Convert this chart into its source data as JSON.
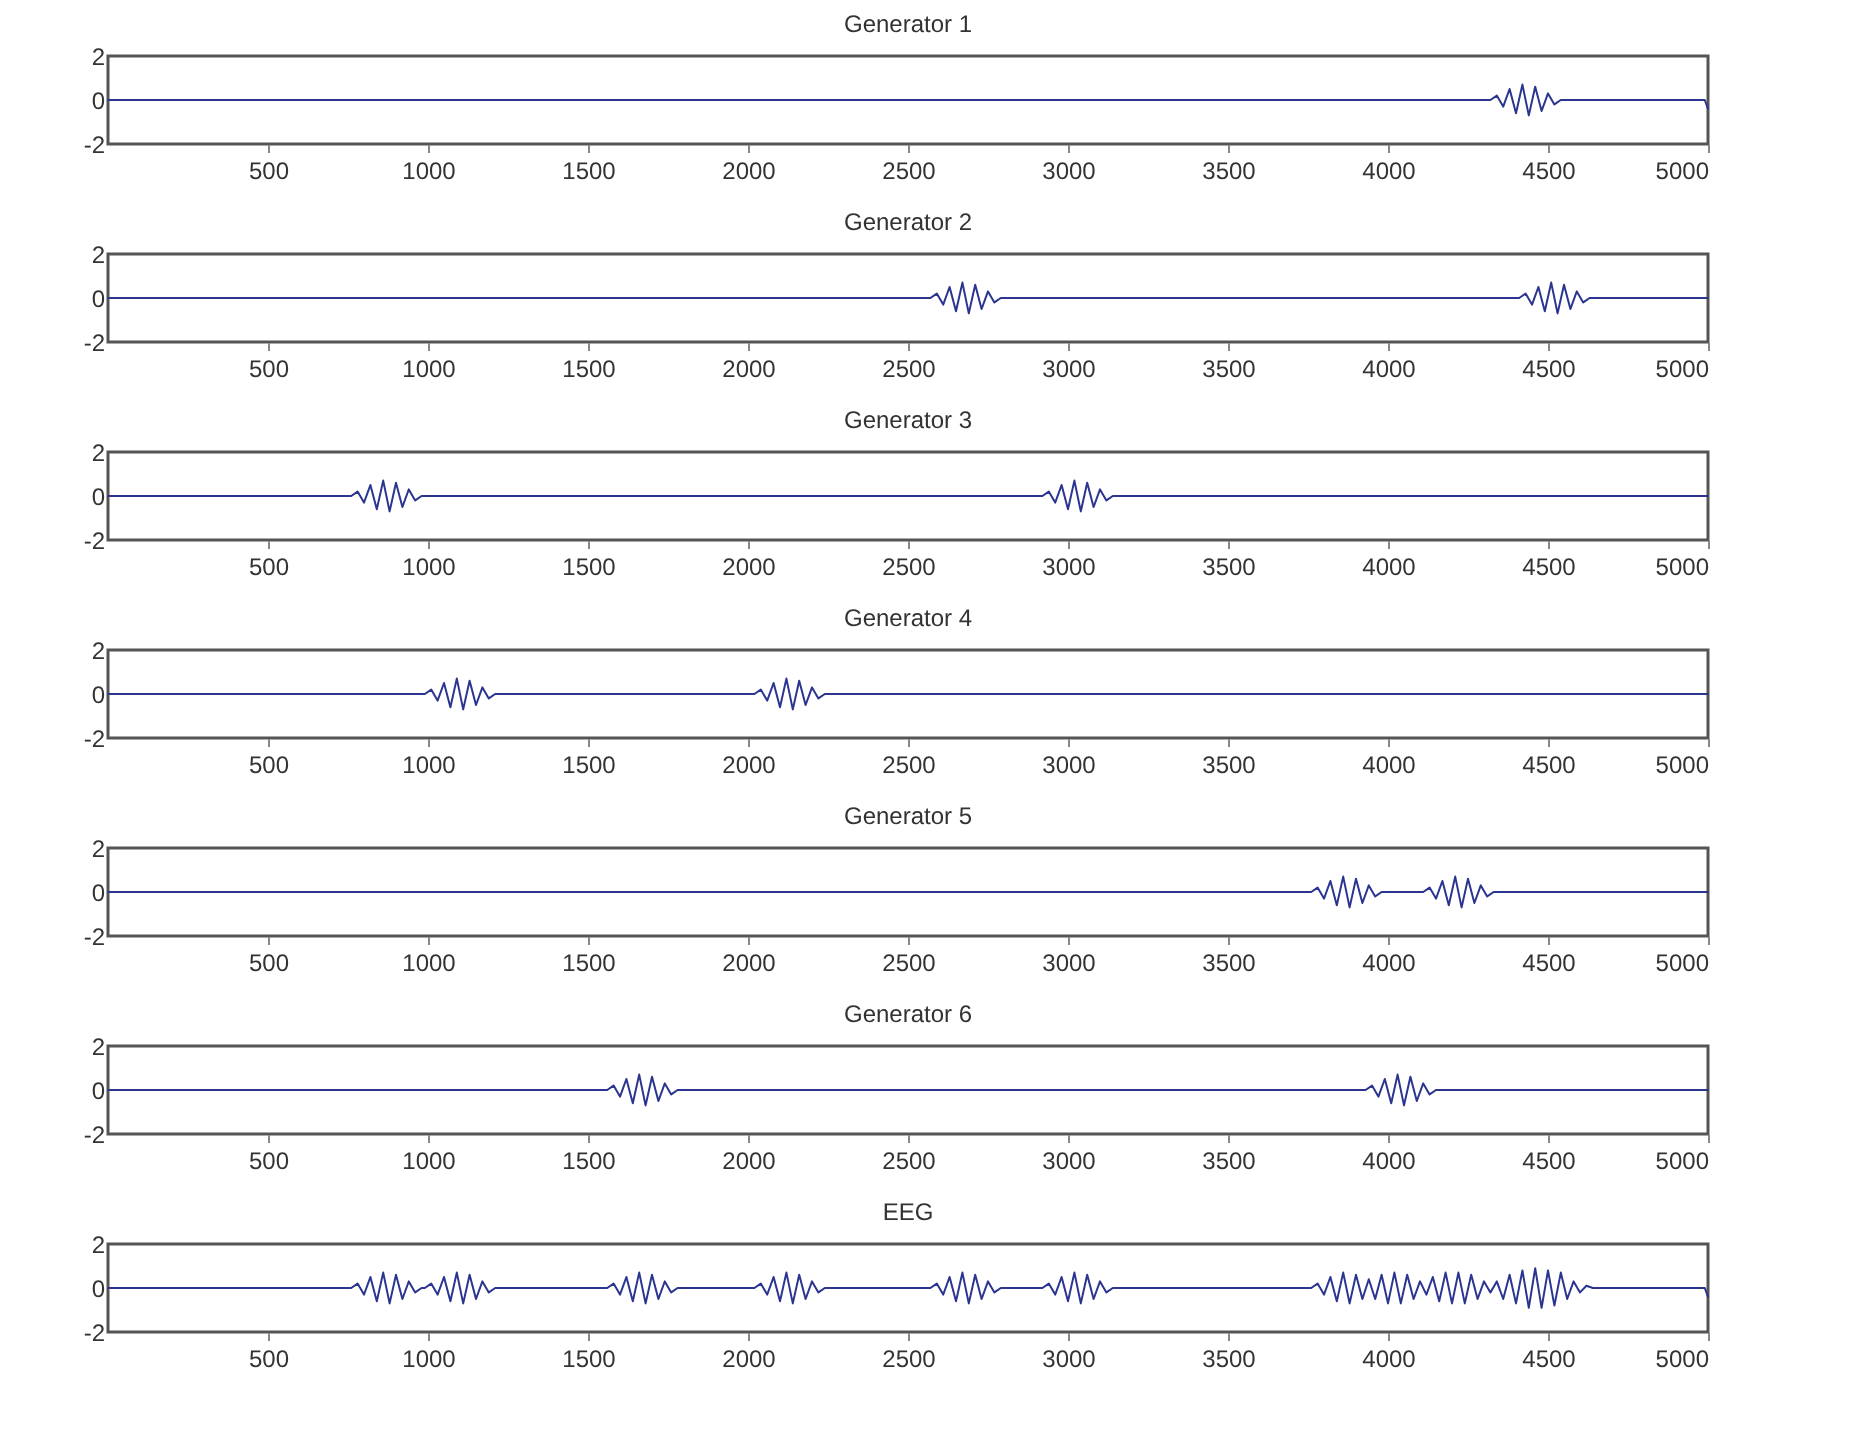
{
  "chart_data": [
    {
      "type": "line",
      "title": "Generator 1",
      "xlim": [
        0,
        5000
      ],
      "xticks": [
        500,
        1000,
        1500,
        2000,
        2500,
        3000,
        3500,
        4000,
        4500,
        5000
      ],
      "ylim": [
        -2,
        2
      ],
      "yticks": [
        -2,
        0,
        2
      ],
      "grid": false,
      "series": [
        {
          "color": "#2b3590",
          "x": [
            1,
            4320,
            4340,
            4360,
            4380,
            4400,
            4420,
            4440,
            4460,
            4480,
            4500,
            4520,
            4540,
            4990,
            5000
          ],
          "values": [
            0,
            0,
            0.2,
            -0.3,
            0.5,
            -0.6,
            0.7,
            -0.7,
            0.6,
            -0.5,
            0.3,
            -0.2,
            0,
            0,
            -0.4
          ]
        }
      ]
    },
    {
      "type": "line",
      "title": "Generator 2",
      "xlim": [
        0,
        5000
      ],
      "xticks": [
        500,
        1000,
        1500,
        2000,
        2500,
        3000,
        3500,
        4000,
        4500,
        5000
      ],
      "ylim": [
        -2,
        2
      ],
      "yticks": [
        -2,
        0,
        2
      ],
      "grid": false,
      "series": [
        {
          "color": "#2b3590",
          "x": [
            1,
            2570,
            2590,
            2610,
            2630,
            2650,
            2670,
            2690,
            2710,
            2730,
            2750,
            2770,
            2790,
            4410,
            4430,
            4450,
            4470,
            4490,
            4510,
            4530,
            4550,
            4570,
            4590,
            4610,
            4630,
            5000
          ],
          "values": [
            0,
            0,
            0.2,
            -0.3,
            0.5,
            -0.6,
            0.7,
            -0.7,
            0.6,
            -0.5,
            0.3,
            -0.2,
            0,
            0,
            0.2,
            -0.3,
            0.5,
            -0.6,
            0.7,
            -0.7,
            0.6,
            -0.5,
            0.3,
            -0.2,
            0,
            0
          ]
        }
      ]
    },
    {
      "type": "line",
      "title": "Generator 3",
      "xlim": [
        0,
        5000
      ],
      "xticks": [
        500,
        1000,
        1500,
        2000,
        2500,
        3000,
        3500,
        4000,
        4500,
        5000
      ],
      "ylim": [
        -2,
        2
      ],
      "yticks": [
        -2,
        0,
        2
      ],
      "grid": false,
      "series": [
        {
          "color": "#2b3590",
          "x": [
            1,
            760,
            780,
            800,
            820,
            840,
            860,
            880,
            900,
            920,
            940,
            960,
            980,
            2920,
            2940,
            2960,
            2980,
            3000,
            3020,
            3040,
            3060,
            3080,
            3100,
            3120,
            3140,
            5000
          ],
          "values": [
            0,
            0,
            0.2,
            -0.3,
            0.5,
            -0.6,
            0.7,
            -0.7,
            0.6,
            -0.5,
            0.3,
            -0.2,
            0,
            0,
            0.2,
            -0.3,
            0.5,
            -0.6,
            0.7,
            -0.7,
            0.6,
            -0.5,
            0.3,
            -0.2,
            0,
            0
          ]
        }
      ]
    },
    {
      "type": "line",
      "title": "Generator 4",
      "xlim": [
        0,
        5000
      ],
      "xticks": [
        500,
        1000,
        1500,
        2000,
        2500,
        3000,
        3500,
        4000,
        4500,
        5000
      ],
      "ylim": [
        -2,
        2
      ],
      "yticks": [
        -2,
        0,
        2
      ],
      "grid": false,
      "series": [
        {
          "color": "#2b3590",
          "x": [
            1,
            990,
            1010,
            1030,
            1050,
            1070,
            1090,
            1110,
            1130,
            1150,
            1170,
            1190,
            1210,
            2020,
            2040,
            2060,
            2080,
            2100,
            2120,
            2140,
            2160,
            2180,
            2200,
            2220,
            2240,
            5000
          ],
          "values": [
            0,
            0,
            0.2,
            -0.3,
            0.5,
            -0.6,
            0.7,
            -0.7,
            0.6,
            -0.5,
            0.3,
            -0.2,
            0,
            0,
            0.2,
            -0.3,
            0.5,
            -0.6,
            0.7,
            -0.7,
            0.6,
            -0.5,
            0.3,
            -0.2,
            0,
            0
          ]
        }
      ]
    },
    {
      "type": "line",
      "title": "Generator 5",
      "xlim": [
        0,
        5000
      ],
      "xticks": [
        500,
        1000,
        1500,
        2000,
        2500,
        3000,
        3500,
        4000,
        4500,
        5000
      ],
      "ylim": [
        -2,
        2
      ],
      "yticks": [
        -2,
        0,
        2
      ],
      "grid": false,
      "series": [
        {
          "color": "#2b3590",
          "x": [
            1,
            3760,
            3780,
            3800,
            3820,
            3840,
            3860,
            3880,
            3900,
            3920,
            3940,
            3960,
            3980,
            4110,
            4130,
            4150,
            4170,
            4190,
            4210,
            4230,
            4250,
            4270,
            4290,
            4310,
            4330,
            5000
          ],
          "values": [
            0,
            0,
            0.2,
            -0.3,
            0.5,
            -0.6,
            0.7,
            -0.7,
            0.6,
            -0.5,
            0.3,
            -0.2,
            0,
            0,
            0.2,
            -0.3,
            0.5,
            -0.6,
            0.7,
            -0.7,
            0.6,
            -0.5,
            0.3,
            -0.2,
            0,
            0
          ]
        }
      ]
    },
    {
      "type": "line",
      "title": "Generator 6",
      "xlim": [
        0,
        5000
      ],
      "xticks": [
        500,
        1000,
        1500,
        2000,
        2500,
        3000,
        3500,
        4000,
        4500,
        5000
      ],
      "ylim": [
        -2,
        2
      ],
      "yticks": [
        -2,
        0,
        2
      ],
      "grid": false,
      "series": [
        {
          "color": "#2b3590",
          "x": [
            1,
            1560,
            1580,
            1600,
            1620,
            1640,
            1660,
            1680,
            1700,
            1720,
            1740,
            1760,
            1780,
            3930,
            3950,
            3970,
            3990,
            4010,
            4030,
            4050,
            4070,
            4090,
            4110,
            4130,
            4150,
            5000
          ],
          "values": [
            0,
            0,
            0.2,
            -0.3,
            0.5,
            -0.6,
            0.7,
            -0.7,
            0.6,
            -0.5,
            0.3,
            -0.2,
            0,
            0,
            0.2,
            -0.3,
            0.5,
            -0.6,
            0.7,
            -0.7,
            0.6,
            -0.5,
            0.3,
            -0.2,
            0,
            0
          ]
        }
      ]
    },
    {
      "type": "line",
      "title": "EEG",
      "xlim": [
        0,
        5000
      ],
      "xticks": [
        500,
        1000,
        1500,
        2000,
        2500,
        3000,
        3500,
        4000,
        4500,
        5000
      ],
      "ylim": [
        -2,
        2
      ],
      "yticks": [
        -2,
        0,
        2
      ],
      "grid": false,
      "series": [
        {
          "color": "#2b3590",
          "x": [
            1,
            760,
            780,
            800,
            820,
            840,
            860,
            880,
            900,
            920,
            940,
            960,
            980,
            990,
            1010,
            1030,
            1050,
            1070,
            1090,
            1110,
            1130,
            1150,
            1170,
            1190,
            1210,
            1560,
            1580,
            1600,
            1620,
            1640,
            1660,
            1680,
            1700,
            1720,
            1740,
            1760,
            1780,
            2020,
            2040,
            2060,
            2080,
            2100,
            2120,
            2140,
            2160,
            2180,
            2200,
            2220,
            2240,
            2570,
            2590,
            2610,
            2630,
            2650,
            2670,
            2690,
            2710,
            2730,
            2750,
            2770,
            2790,
            2920,
            2940,
            2960,
            2980,
            3000,
            3020,
            3040,
            3060,
            3080,
            3100,
            3120,
            3140,
            3760,
            3780,
            3800,
            3820,
            3840,
            3860,
            3880,
            3900,
            3920,
            3940,
            3960,
            3980,
            4000,
            4020,
            4040,
            4060,
            4080,
            4100,
            4120,
            4140,
            4160,
            4180,
            4200,
            4220,
            4240,
            4260,
            4280,
            4300,
            4320,
            4340,
            4360,
            4380,
            4400,
            4420,
            4440,
            4460,
            4480,
            4500,
            4520,
            4540,
            4560,
            4580,
            4600,
            4620,
            4640,
            4990,
            5000
          ],
          "values": [
            0,
            0,
            0.2,
            -0.3,
            0.5,
            -0.6,
            0.7,
            -0.7,
            0.6,
            -0.5,
            0.3,
            -0.2,
            0,
            0,
            0.2,
            -0.3,
            0.5,
            -0.6,
            0.7,
            -0.7,
            0.6,
            -0.5,
            0.3,
            -0.2,
            0,
            0,
            0.2,
            -0.3,
            0.5,
            -0.6,
            0.7,
            -0.7,
            0.6,
            -0.5,
            0.3,
            -0.2,
            0,
            0,
            0.2,
            -0.3,
            0.5,
            -0.6,
            0.7,
            -0.7,
            0.6,
            -0.5,
            0.3,
            -0.2,
            0,
            0,
            0.2,
            -0.3,
            0.5,
            -0.6,
            0.7,
            -0.7,
            0.6,
            -0.5,
            0.3,
            -0.2,
            0,
            0,
            0.2,
            -0.3,
            0.5,
            -0.6,
            0.7,
            -0.7,
            0.6,
            -0.5,
            0.3,
            -0.2,
            0,
            0,
            0.2,
            -0.3,
            0.5,
            -0.6,
            0.7,
            -0.7,
            0.6,
            -0.5,
            0.4,
            -0.5,
            0.6,
            -0.7,
            0.7,
            -0.7,
            0.6,
            -0.5,
            0.3,
            -0.3,
            0.5,
            -0.6,
            0.7,
            -0.7,
            0.7,
            -0.7,
            0.6,
            -0.5,
            0.3,
            -0.2,
            0.3,
            -0.5,
            0.6,
            -0.7,
            0.8,
            -0.9,
            0.9,
            -0.9,
            0.8,
            -0.8,
            0.7,
            -0.5,
            0.3,
            -0.2,
            0.1,
            0,
            0,
            -0.4
          ]
        }
      ]
    }
  ]
}
